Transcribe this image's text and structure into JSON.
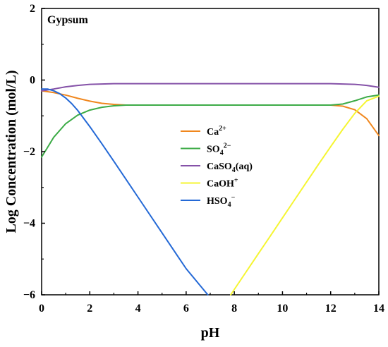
{
  "chart_data": {
    "type": "line",
    "annotation": "Gypsum",
    "xlabel": "pH",
    "ylabel": "Log Concentration (mol/L)",
    "xlim": [
      0,
      14
    ],
    "ylim": [
      -6,
      2
    ],
    "xticks": [
      "0",
      "2",
      "4",
      "6",
      "8",
      "10",
      "12",
      "14"
    ],
    "yticks": [
      "2",
      "0",
      "−2",
      "−4",
      "−6"
    ],
    "grid": false,
    "legend_position": "center",
    "series": [
      {
        "name": "Ca2+",
        "label": {
          "base": "Ca",
          "sup": "2+",
          "sub": "",
          "tail": ""
        },
        "color": "#f0871e",
        "x": [
          0,
          0.5,
          1,
          1.5,
          2,
          2.5,
          3,
          3.5,
          4,
          5,
          6,
          7,
          8,
          9,
          10,
          11,
          12,
          12.5,
          13,
          13.5,
          14
        ],
        "y": [
          -0.3,
          -0.35,
          -0.42,
          -0.51,
          -0.59,
          -0.65,
          -0.68,
          -0.7,
          -0.7,
          -0.7,
          -0.7,
          -0.7,
          -0.7,
          -0.7,
          -0.7,
          -0.7,
          -0.7,
          -0.73,
          -0.83,
          -1.08,
          -1.55
        ]
      },
      {
        "name": "SO42−",
        "label": {
          "base": "SO",
          "sub": "4",
          "sup": "2−",
          "tail": ""
        },
        "color": "#3cab46",
        "x": [
          0,
          0.25,
          0.5,
          1,
          1.5,
          2,
          2.5,
          3,
          3.5,
          4,
          5,
          6,
          7,
          8,
          9,
          10,
          11,
          12,
          12.5,
          13,
          13.5,
          14
        ],
        "y": [
          -2.15,
          -1.88,
          -1.6,
          -1.22,
          -0.98,
          -0.84,
          -0.76,
          -0.72,
          -0.7,
          -0.7,
          -0.7,
          -0.7,
          -0.7,
          -0.7,
          -0.7,
          -0.7,
          -0.7,
          -0.7,
          -0.67,
          -0.58,
          -0.47,
          -0.42
        ]
      },
      {
        "name": "CaSO4(aq)",
        "label": {
          "base": "CaSO",
          "sub": "4",
          "sup": "",
          "tail": "(aq)"
        },
        "color": "#8552a8",
        "x": [
          0,
          0.5,
          1,
          1.5,
          2,
          2.5,
          3,
          4,
          6,
          8,
          10,
          12,
          12.5,
          13,
          13.5,
          14
        ],
        "y": [
          -0.3,
          -0.25,
          -0.19,
          -0.15,
          -0.12,
          -0.11,
          -0.1,
          -0.1,
          -0.1,
          -0.1,
          -0.1,
          -0.1,
          -0.11,
          -0.12,
          -0.15,
          -0.2
        ]
      },
      {
        "name": "CaOH+",
        "label": {
          "base": "CaOH",
          "sub": "",
          "sup": "+",
          "tail": ""
        },
        "color": "#f5f532",
        "x": [
          7.85,
          8.5,
          9,
          9.5,
          10,
          10.5,
          11,
          11.5,
          12,
          12.5,
          13,
          13.5,
          14
        ],
        "y": [
          -6.0,
          -5.35,
          -4.85,
          -4.35,
          -3.85,
          -3.35,
          -2.85,
          -2.35,
          -1.86,
          -1.38,
          -0.93,
          -0.58,
          -0.45
        ]
      },
      {
        "name": "HSO4−",
        "label": {
          "base": "HSO",
          "sub": "4",
          "sup": "−",
          "tail": ""
        },
        "color": "#2469d6",
        "x": [
          0,
          0.25,
          0.5,
          0.75,
          1,
          1.25,
          1.5,
          2,
          2.5,
          3,
          4,
          5,
          6,
          6.9
        ],
        "y": [
          -0.25,
          -0.25,
          -0.3,
          -0.38,
          -0.5,
          -0.66,
          -0.85,
          -1.3,
          -1.78,
          -2.27,
          -3.27,
          -4.27,
          -5.27,
          -6.0
        ]
      }
    ]
  }
}
